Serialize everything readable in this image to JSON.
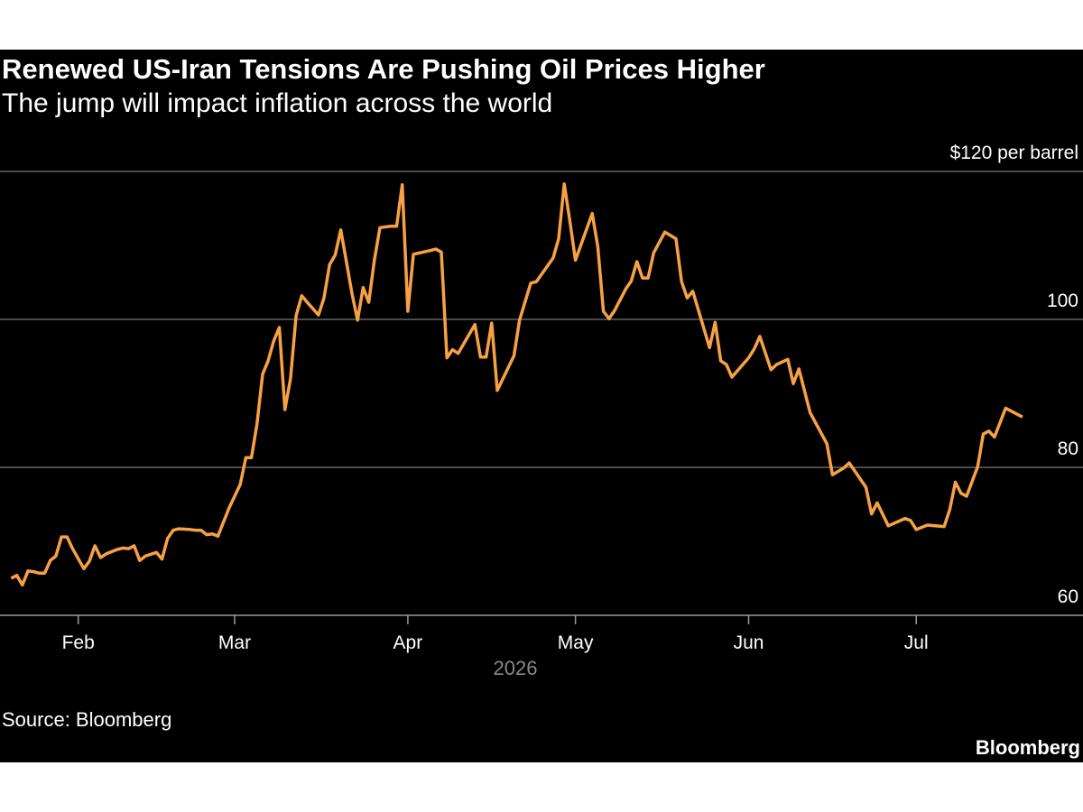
{
  "chart_data": {
    "type": "line",
    "title": "Renewed US-Iran Tensions Are Pushing Oil Prices Higher",
    "subtitle": "The jump will impact inflation across the world",
    "xlabel": "2026",
    "source": "Source: Bloomberg",
    "brand": "Bloomberg",
    "color": "#f7a145",
    "grid": true,
    "x": [
      20,
      21,
      22,
      23,
      24,
      25,
      26,
      27,
      28,
      29,
      30,
      31,
      33,
      34,
      35,
      36,
      37,
      39,
      40,
      41,
      42,
      43,
      44,
      46,
      47,
      48,
      49,
      50,
      52,
      53,
      54,
      55,
      56,
      57,
      59,
      61,
      62,
      63,
      64,
      65,
      66,
      67,
      68,
      69,
      70,
      71,
      72,
      73,
      75,
      76,
      77,
      78,
      79,
      80,
      81,
      82,
      83,
      84,
      85,
      86,
      88,
      89,
      90,
      91,
      92,
      95,
      96,
      97,
      98,
      99,
      100,
      103,
      104,
      105,
      106,
      107,
      110,
      111,
      113,
      114,
      117,
      118,
      119,
      120,
      121,
      124,
      125,
      126,
      127,
      128,
      130,
      131,
      132,
      133,
      134,
      135,
      137,
      139,
      140,
      141,
      142,
      145,
      146,
      147,
      148,
      149,
      152,
      153,
      154,
      156,
      157,
      159,
      160,
      161,
      163,
      166,
      167,
      169,
      170,
      173,
      174,
      175,
      177,
      180,
      181,
      182,
      184,
      187,
      188,
      189,
      190,
      191,
      193,
      194,
      195,
      196,
      198,
      201
    ],
    "values": [
      65.0,
      65.4,
      64.1,
      66.0,
      65.9,
      65.7,
      65.7,
      67.4,
      68.0,
      70.6,
      70.6,
      69.0,
      66.3,
      67.3,
      69.4,
      67.8,
      68.3,
      68.9,
      69.1,
      69.0,
      69.4,
      67.4,
      68.0,
      68.5,
      67.6,
      70.4,
      71.5,
      71.7,
      71.6,
      71.5,
      71.5,
      70.9,
      71.0,
      70.7,
      74.5,
      77.7,
      81.3,
      81.3,
      85.9,
      92.6,
      94.4,
      97.1,
      98.9,
      87.8,
      92.0,
      100.5,
      103.2,
      102.3,
      100.6,
      102.9,
      107.4,
      108.7,
      112.1,
      107.8,
      103.5,
      99.9,
      104.3,
      102.3,
      108.0,
      112.4,
      112.6,
      112.6,
      118.2,
      101.1,
      108.8,
      109.3,
      109.5,
      109.1,
      94.8,
      95.9,
      95.4,
      99.3,
      94.9,
      94.9,
      99.5,
      90.4,
      95.1,
      99.9,
      104.9,
      105.1,
      108.3,
      110.9,
      118.3,
      113.3,
      108.0,
      114.3,
      109.8,
      101.1,
      100.1,
      101.2,
      104.1,
      105.2,
      107.8,
      105.6,
      105.6,
      109.0,
      111.8,
      110.9,
      105.1,
      102.9,
      103.8,
      96.2,
      99.6,
      94.4,
      93.9,
      92.2,
      94.8,
      96.0,
      97.7,
      93.2,
      93.9,
      94.6,
      91.3,
      93.3,
      87.4,
      83.2,
      79.0,
      79.9,
      80.6,
      77.3,
      73.7,
      75.2,
      72.1,
      73.1,
      72.8,
      71.6,
      72.2,
      72.0,
      74.3,
      78.0,
      76.5,
      76.1,
      80.1,
      84.5,
      84.9,
      84.1,
      88.0,
      86.8
    ],
    "xlim": [
      18,
      207
    ],
    "xticks": [
      {
        "value": 32,
        "label": "Feb"
      },
      {
        "value": 60,
        "label": "Mar"
      },
      {
        "value": 91,
        "label": "Apr"
      },
      {
        "value": 121,
        "label": "May"
      },
      {
        "value": 152,
        "label": "Jun"
      },
      {
        "value": 182,
        "label": "Jul"
      }
    ],
    "ylim": [
      60,
      120
    ],
    "yticks": [
      60,
      80,
      100,
      {
        "value": 120,
        "label": "$120 per barrel"
      }
    ]
  }
}
